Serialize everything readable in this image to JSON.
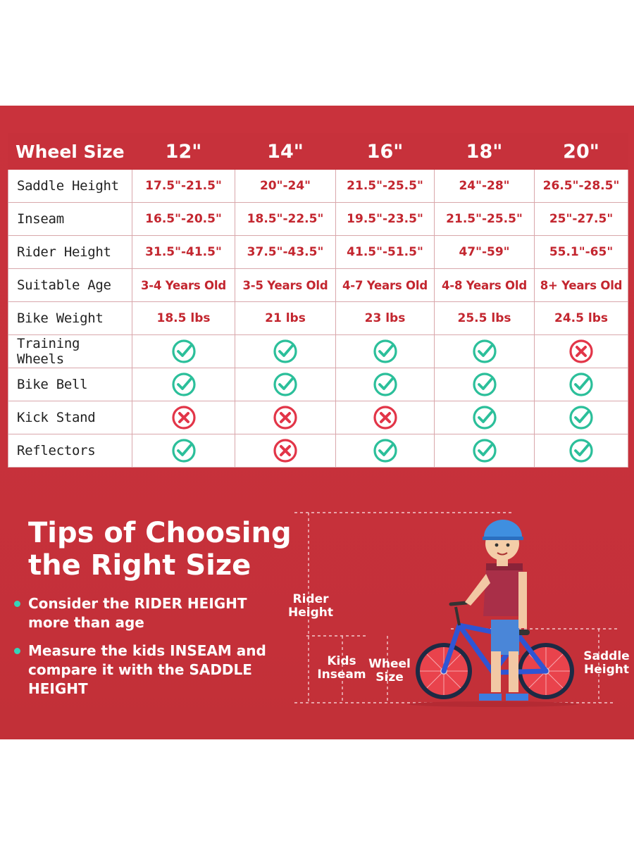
{
  "table": {
    "header_label": "Wheel Size",
    "columns": [
      "12\"",
      "14\"",
      "16\"",
      "18\"",
      "20\""
    ],
    "rows": [
      {
        "label": "Saddle Height",
        "type": "text",
        "values": [
          "17.5\"-21.5\"",
          "20\"-24\"",
          "21.5\"-25.5\"",
          "24\"-28\"",
          "26.5\"-28.5\""
        ]
      },
      {
        "label": "Inseam",
        "type": "text",
        "values": [
          "16.5\"-20.5\"",
          "18.5\"-22.5\"",
          "19.5\"-23.5\"",
          "21.5\"-25.5\"",
          "25\"-27.5\""
        ]
      },
      {
        "label": "Rider Height",
        "type": "text",
        "values": [
          "31.5\"-41.5\"",
          "37.5\"-43.5\"",
          "41.5\"-51.5\"",
          "47\"-59\"",
          "55.1\"-65\""
        ]
      },
      {
        "label": "Suitable Age",
        "type": "text",
        "values": [
          "3-4 Years Old",
          "3-5 Years Old",
          "4-7 Years Old",
          "4-8 Years Old",
          "8+ Years Old"
        ]
      },
      {
        "label": "Bike Weight",
        "type": "text",
        "values": [
          "18.5 lbs",
          "21 lbs",
          "23 lbs",
          "25.5 lbs",
          "24.5 lbs"
        ]
      },
      {
        "label": "Training Wheels",
        "type": "icon",
        "values": [
          "check-icon",
          "check-icon",
          "check-icon",
          "check-icon",
          "cross-icon"
        ]
      },
      {
        "label": "Bike Bell",
        "type": "icon",
        "values": [
          "check-icon",
          "check-icon",
          "check-icon",
          "check-icon",
          "check-icon"
        ]
      },
      {
        "label": "Kick Stand",
        "type": "icon",
        "values": [
          "cross-icon",
          "cross-icon",
          "cross-icon",
          "check-icon",
          "check-icon"
        ]
      },
      {
        "label": "Reflectors",
        "type": "icon",
        "values": [
          "check-icon",
          "cross-icon",
          "check-icon",
          "check-icon",
          "check-icon"
        ]
      }
    ]
  },
  "tips": {
    "title_line1": "Tips of Choosing",
    "title_line2": "the Right Size",
    "items": [
      {
        "line1": "Consider the RIDER HEIGHT",
        "line2": "more than age"
      },
      {
        "line1": "Measure the kids INSEAM and",
        "line2": "compare it with the SADDLE",
        "line3": "HEIGHT"
      }
    ]
  },
  "illustration": {
    "rider_height_l1": "Rider",
    "rider_height_l2": "Height",
    "kids_inseam_l1": "Kids",
    "kids_inseam_l2": "Inseam",
    "wheel_size_l1": "Wheel",
    "wheel_size_l2": "Size",
    "saddle_height_l1": "Saddle",
    "saddle_height_l2": "Height"
  },
  "colors": {
    "brand_red": "#c7313b",
    "value_red": "#c3262f",
    "check_green": "#2bbf9a",
    "cross_red": "#e23548",
    "bullet_teal": "#36d3b8"
  }
}
